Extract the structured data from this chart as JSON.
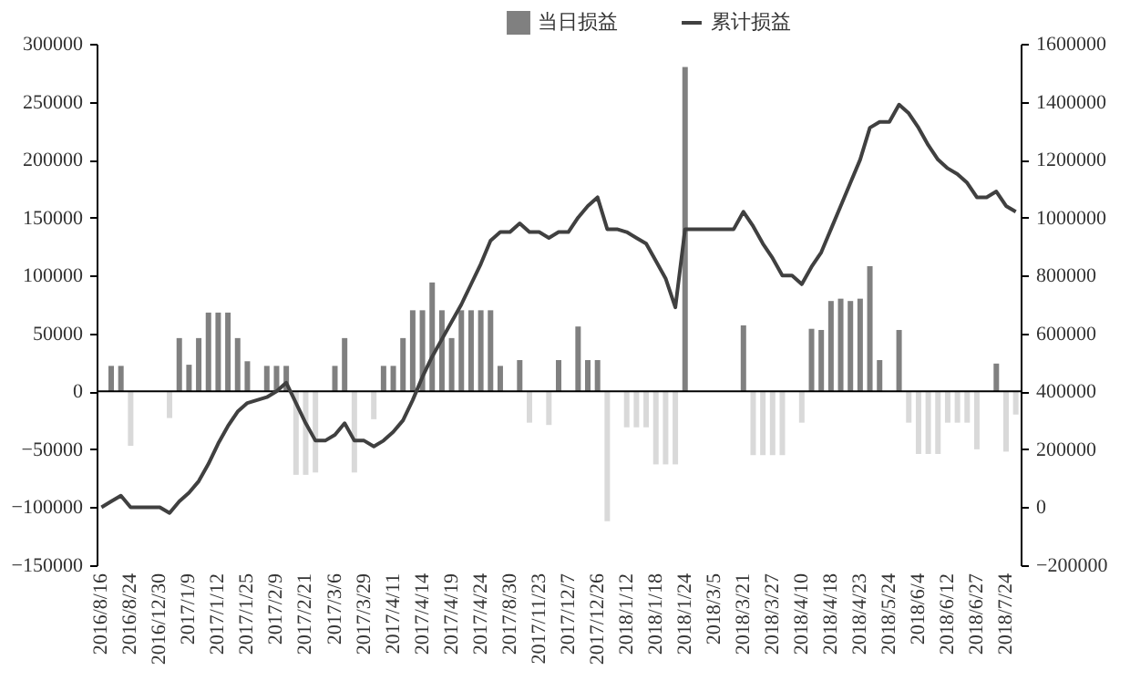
{
  "chart_data": {
    "type": "bar",
    "legend": "top",
    "categories": [
      "2016/8/16",
      null,
      null,
      "2016/8/24",
      null,
      null,
      "2016/12/30",
      null,
      null,
      "2017/1/9",
      null,
      null,
      "2017/1/12",
      null,
      null,
      "2017/1/25",
      null,
      null,
      "2017/2/9",
      null,
      null,
      "2017/2/21",
      null,
      null,
      "2017/3/6",
      null,
      null,
      "2017/3/29",
      null,
      null,
      "2017/4/11",
      null,
      null,
      "2017/4/14",
      null,
      null,
      "2017/4/19",
      null,
      null,
      "2017/4/24",
      null,
      null,
      "2017/8/30",
      null,
      null,
      "2017/11/23",
      null,
      null,
      "2017/12/7",
      null,
      null,
      "2017/12/26",
      null,
      null,
      "2018/1/12",
      null,
      null,
      "2018/1/18",
      null,
      null,
      "2018/1/24",
      null,
      null,
      "2018/3/5",
      null,
      null,
      "2018/3/21",
      null,
      null,
      "2018/3/27",
      null,
      null,
      "2018/4/10",
      null,
      null,
      "2018/4/18",
      null,
      null,
      "2018/4/23",
      null,
      null,
      "2018/5/24",
      null,
      null,
      "2018/6/4",
      null,
      null,
      "2018/6/12",
      null,
      null,
      "2018/6/27",
      null,
      null,
      "2018/7/24",
      null
    ],
    "ylim": [
      -150000,
      300000
    ],
    "yticks": [
      -150000,
      -100000,
      -50000,
      0,
      50000,
      100000,
      150000,
      200000,
      250000,
      300000
    ],
    "y2lim": [
      -200000,
      1600000
    ],
    "y2ticks": [
      -200000,
      0,
      200000,
      400000,
      600000,
      800000,
      1000000,
      1200000,
      1400000,
      1600000
    ],
    "ref_lines": [
      {
        "axis": "y",
        "value": 0,
        "color": "#000000"
      }
    ],
    "series": [
      {
        "name": "当日损益",
        "color": "#808080",
        "values": [
          null,
          22000,
          22000,
          -47000,
          null,
          null,
          null,
          -23000,
          46000,
          23000,
          46000,
          68000,
          68000,
          68000,
          46000,
          26000,
          null,
          22000,
          22000,
          22000,
          -72000,
          -72000,
          -70000,
          null,
          22000,
          46000,
          -70000,
          null,
          -24000,
          22000,
          22000,
          46000,
          70000,
          70000,
          94000,
          70000,
          46000,
          70000,
          70000,
          70000,
          70000,
          22000,
          null,
          27000,
          -27000,
          null,
          -29000,
          27000,
          null,
          56000,
          27000,
          27000,
          -112000,
          null,
          -31000,
          -31000,
          -31000,
          -63000,
          -63000,
          -63000,
          280000,
          null,
          null,
          null,
          null,
          null,
          57000,
          -55000,
          -55000,
          -55000,
          -55000,
          null,
          -27000,
          54000,
          53000,
          78000,
          80000,
          78000,
          80000,
          108000,
          27000,
          null,
          53000,
          -27000,
          -54000,
          -54000,
          -54000,
          -27000,
          -27000,
          -27000,
          -50000,
          null,
          24000,
          -52000,
          -20000
        ],
        "colors": [
          null,
          "#808080",
          "#808080",
          "#d9d9d9",
          null,
          null,
          null,
          "#d9d9d9",
          "#808080",
          "#808080",
          "#808080",
          "#808080",
          "#808080",
          "#808080",
          "#808080",
          "#808080",
          null,
          "#808080",
          "#808080",
          "#808080",
          "#d9d9d9",
          "#d9d9d9",
          "#d9d9d9",
          null,
          "#808080",
          "#808080",
          "#d9d9d9",
          null,
          "#d9d9d9",
          "#808080",
          "#808080",
          "#808080",
          "#808080",
          "#808080",
          "#808080",
          "#808080",
          "#808080",
          "#808080",
          "#808080",
          "#808080",
          "#808080",
          "#808080",
          null,
          "#808080",
          "#d9d9d9",
          null,
          "#d9d9d9",
          "#808080",
          null,
          "#808080",
          "#808080",
          "#808080",
          "#d9d9d9",
          null,
          "#d9d9d9",
          "#d9d9d9",
          "#d9d9d9",
          "#d9d9d9",
          "#d9d9d9",
          "#d9d9d9",
          "#808080",
          null,
          null,
          null,
          null,
          null,
          "#808080",
          "#d9d9d9",
          "#d9d9d9",
          "#d9d9d9",
          "#d9d9d9",
          null,
          "#d9d9d9",
          "#808080",
          "#808080",
          "#808080",
          "#808080",
          "#808080",
          "#808080",
          "#808080",
          "#808080",
          null,
          "#808080",
          "#d9d9d9",
          "#d9d9d9",
          "#d9d9d9",
          "#d9d9d9",
          "#d9d9d9",
          "#d9d9d9",
          "#d9d9d9",
          "#d9d9d9",
          null,
          "#808080",
          "#d9d9d9",
          "#d9d9d9"
        ]
      },
      {
        "name": "累计损益",
        "type": "line",
        "axis": "y2",
        "color": "#404040",
        "values": [
          0,
          20000,
          40000,
          0,
          0,
          0,
          0,
          -20000,
          20000,
          50000,
          90000,
          150000,
          220000,
          280000,
          330000,
          360000,
          370000,
          380000,
          400000,
          430000,
          360000,
          290000,
          230000,
          230000,
          250000,
          290000,
          230000,
          230000,
          210000,
          230000,
          260000,
          300000,
          370000,
          450000,
          520000,
          580000,
          640000,
          700000,
          770000,
          840000,
          920000,
          950000,
          950000,
          980000,
          950000,
          950000,
          930000,
          950000,
          950000,
          1000000,
          1040000,
          1070000,
          960000,
          960000,
          950000,
          930000,
          910000,
          850000,
          790000,
          690000,
          960000,
          960000,
          960000,
          960000,
          960000,
          960000,
          1020000,
          970000,
          910000,
          860000,
          800000,
          800000,
          770000,
          830000,
          880000,
          960000,
          1040000,
          1120000,
          1200000,
          1310000,
          1330000,
          1330000,
          1390000,
          1360000,
          1310000,
          1250000,
          1200000,
          1170000,
          1150000,
          1120000,
          1070000,
          1070000,
          1090000,
          1040000,
          1020000
        ]
      }
    ]
  }
}
